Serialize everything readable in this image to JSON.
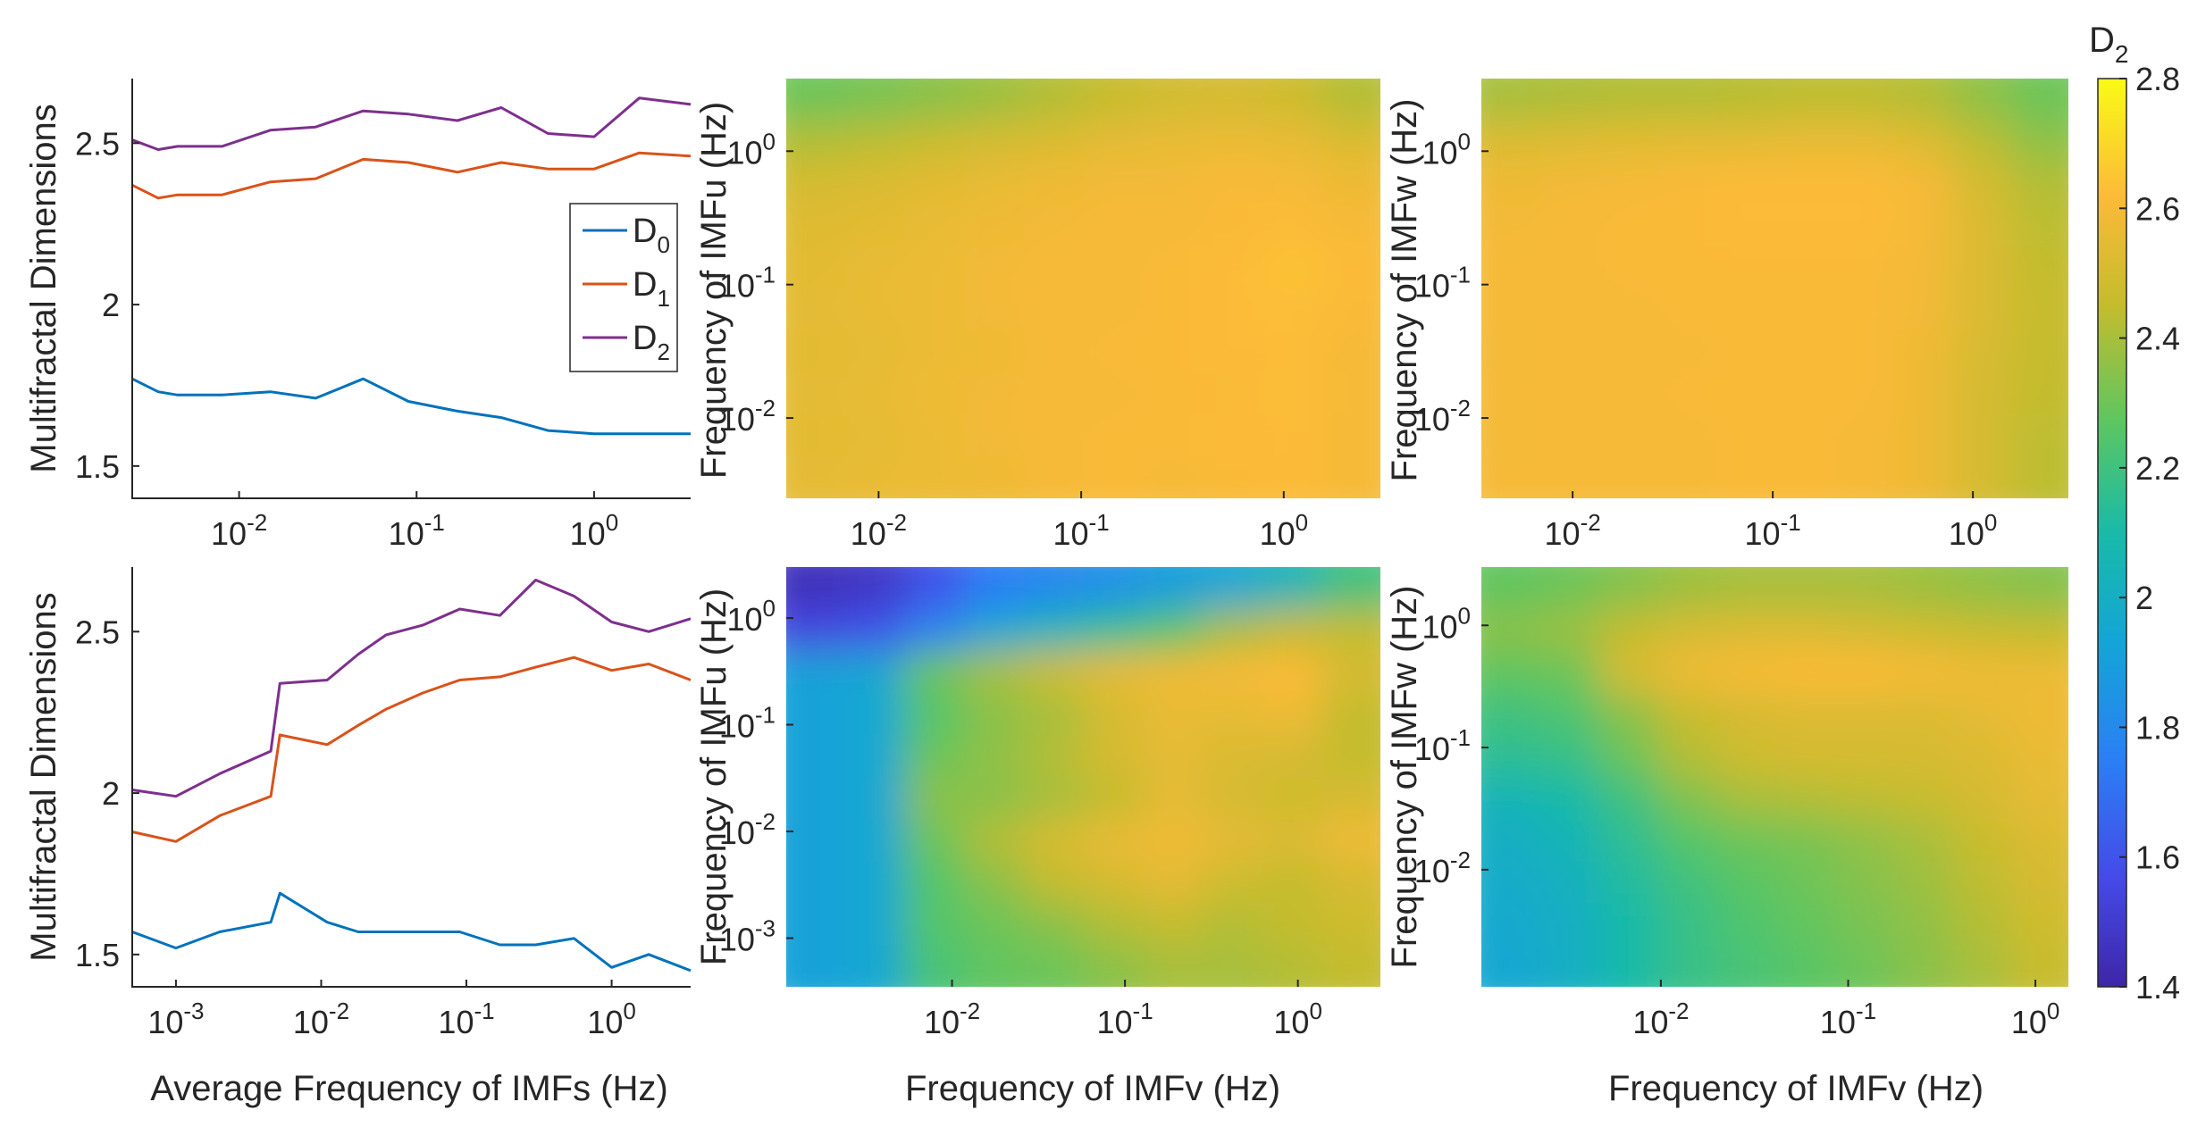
{
  "figure": {
    "colorbar": {
      "title": "D2",
      "title_base": "D",
      "title_sub": "2",
      "ticks": [
        "1.4",
        "1.6",
        "1.8",
        "2",
        "2.2",
        "2.4",
        "2.6",
        "2.8"
      ],
      "range": [
        1.4,
        2.8
      ]
    },
    "legend": [
      {
        "base": "D",
        "sub": "0",
        "color": "#0072BD"
      },
      {
        "base": "D",
        "sub": "1",
        "color": "#D95319"
      },
      {
        "base": "D",
        "sub": "2",
        "color": "#7E2F8E"
      }
    ]
  },
  "chart_data": [
    {
      "id": "p1",
      "type": "line",
      "xlabel": "",
      "ylabel": "Multifractal Dimensions",
      "xscale": "log",
      "xlim": [
        0.0025,
        3.5
      ],
      "ylim": [
        1.4,
        2.7
      ],
      "xticks": [
        0.01,
        0.1,
        1
      ],
      "xtick_labels": [
        {
          "b": "10",
          "e": "-2"
        },
        {
          "b": "10",
          "e": "-1"
        },
        {
          "b": "10",
          "e": "0"
        }
      ],
      "yticks": [
        1.5,
        2,
        2.5
      ],
      "ytick_labels": [
        "1.5",
        "2",
        "2.5"
      ],
      "x": [
        0.0025,
        0.0035,
        0.0045,
        0.008,
        0.015,
        0.027,
        0.05,
        0.09,
        0.17,
        0.3,
        0.55,
        1.0,
        1.8,
        3.5
      ],
      "series": [
        {
          "name": "D0",
          "values": [
            1.77,
            1.73,
            1.72,
            1.72,
            1.73,
            1.71,
            1.77,
            1.7,
            1.67,
            1.65,
            1.61,
            1.6,
            1.6,
            1.6
          ]
        },
        {
          "name": "D1",
          "values": [
            2.37,
            2.33,
            2.34,
            2.34,
            2.38,
            2.39,
            2.45,
            2.44,
            2.41,
            2.44,
            2.42,
            2.42,
            2.47,
            2.46
          ]
        },
        {
          "name": "D2",
          "values": [
            2.51,
            2.48,
            2.49,
            2.49,
            2.54,
            2.55,
            2.6,
            2.59,
            2.57,
            2.61,
            2.53,
            2.52,
            2.64,
            2.62
          ]
        }
      ]
    },
    {
      "id": "p2",
      "type": "heatmap",
      "xlabel": "",
      "ylabel": "Frequency of IMFu (Hz)",
      "xscale": "log",
      "yscale": "log",
      "xlim": [
        0.0035,
        3.0
      ],
      "ylim": [
        0.0025,
        3.5
      ],
      "xticks": [
        0.01,
        0.1,
        1
      ],
      "xtick_labels": [
        {
          "b": "10",
          "e": "-2"
        },
        {
          "b": "10",
          "e": "-1"
        },
        {
          "b": "10",
          "e": "0"
        }
      ],
      "yticks": [
        0.01,
        0.1,
        1
      ],
      "ytick_labels": [
        {
          "b": "10",
          "e": "-2"
        },
        {
          "b": "10",
          "e": "-1"
        },
        {
          "b": "10",
          "e": "0"
        }
      ],
      "grid_rows_top_to_bottom": [
        [
          2.3,
          2.32,
          2.35,
          2.38,
          2.42,
          2.46,
          2.49,
          2.5,
          2.48,
          2.42
        ],
        [
          2.42,
          2.44,
          2.47,
          2.5,
          2.52,
          2.55,
          2.56,
          2.57,
          2.56,
          2.52
        ],
        [
          2.5,
          2.52,
          2.54,
          2.56,
          2.58,
          2.59,
          2.59,
          2.61,
          2.6,
          2.58
        ],
        [
          2.53,
          2.54,
          2.56,
          2.58,
          2.59,
          2.6,
          2.6,
          2.61,
          2.62,
          2.6
        ],
        [
          2.54,
          2.56,
          2.57,
          2.59,
          2.6,
          2.6,
          2.61,
          2.62,
          2.64,
          2.62
        ],
        [
          2.55,
          2.56,
          2.57,
          2.59,
          2.6,
          2.6,
          2.61,
          2.62,
          2.63,
          2.61
        ],
        [
          2.54,
          2.55,
          2.57,
          2.58,
          2.6,
          2.61,
          2.61,
          2.62,
          2.62,
          2.6
        ],
        [
          2.55,
          2.56,
          2.58,
          2.59,
          2.6,
          2.6,
          2.61,
          2.61,
          2.63,
          2.6
        ],
        [
          2.54,
          2.55,
          2.57,
          2.59,
          2.6,
          2.61,
          2.61,
          2.62,
          2.62,
          2.6
        ],
        [
          2.55,
          2.56,
          2.57,
          2.58,
          2.6,
          2.61,
          2.6,
          2.61,
          2.62,
          2.6
        ]
      ]
    },
    {
      "id": "p3",
      "type": "heatmap",
      "xlabel": "",
      "ylabel": "Frequency of IMFw (Hz)",
      "xscale": "log",
      "yscale": "log",
      "xlim": [
        0.0035,
        3.0
      ],
      "ylim": [
        0.0025,
        3.5
      ],
      "xticks": [
        0.01,
        0.1,
        1
      ],
      "xtick_labels": [
        {
          "b": "10",
          "e": "-2"
        },
        {
          "b": "10",
          "e": "-1"
        },
        {
          "b": "10",
          "e": "0"
        }
      ],
      "yticks": [
        0.01,
        0.1,
        1
      ],
      "ytick_labels": [
        {
          "b": "10",
          "e": "-2"
        },
        {
          "b": "10",
          "e": "-1"
        },
        {
          "b": "10",
          "e": "0"
        }
      ],
      "grid_rows_top_to_bottom": [
        [
          2.4,
          2.41,
          2.42,
          2.42,
          2.43,
          2.44,
          2.44,
          2.42,
          2.36,
          2.3
        ],
        [
          2.52,
          2.53,
          2.54,
          2.55,
          2.55,
          2.56,
          2.56,
          2.53,
          2.44,
          2.36
        ],
        [
          2.58,
          2.59,
          2.6,
          2.61,
          2.62,
          2.62,
          2.62,
          2.6,
          2.5,
          2.42
        ],
        [
          2.59,
          2.6,
          2.61,
          2.61,
          2.62,
          2.62,
          2.62,
          2.6,
          2.52,
          2.44
        ],
        [
          2.6,
          2.6,
          2.61,
          2.61,
          2.61,
          2.61,
          2.61,
          2.59,
          2.52,
          2.45
        ],
        [
          2.6,
          2.6,
          2.6,
          2.61,
          2.61,
          2.61,
          2.61,
          2.59,
          2.52,
          2.46
        ],
        [
          2.59,
          2.6,
          2.6,
          2.6,
          2.61,
          2.61,
          2.61,
          2.58,
          2.51,
          2.45
        ],
        [
          2.6,
          2.6,
          2.6,
          2.61,
          2.61,
          2.61,
          2.61,
          2.58,
          2.5,
          2.45
        ],
        [
          2.59,
          2.6,
          2.6,
          2.6,
          2.61,
          2.61,
          2.6,
          2.58,
          2.5,
          2.44
        ],
        [
          2.6,
          2.6,
          2.6,
          2.6,
          2.61,
          2.61,
          2.6,
          2.58,
          2.5,
          2.44
        ]
      ]
    },
    {
      "id": "p4",
      "type": "line",
      "xlabel": "Average Frequency of IMFs (Hz)",
      "ylabel": "Multifractal Dimensions",
      "xscale": "log",
      "xlim": [
        0.0005,
        3.5
      ],
      "ylim": [
        1.4,
        2.7
      ],
      "xticks": [
        0.001,
        0.01,
        0.1,
        1
      ],
      "xtick_labels": [
        {
          "b": "10",
          "e": "-3"
        },
        {
          "b": "10",
          "e": "-2"
        },
        {
          "b": "10",
          "e": "-1"
        },
        {
          "b": "10",
          "e": "0"
        }
      ],
      "yticks": [
        1.5,
        2,
        2.5
      ],
      "ytick_labels": [
        "1.5",
        "2",
        "2.5"
      ],
      "x": [
        0.0005,
        0.001,
        0.002,
        0.0045,
        0.0052,
        0.011,
        0.018,
        0.028,
        0.05,
        0.09,
        0.17,
        0.3,
        0.55,
        1.0,
        1.8,
        3.5
      ],
      "series": [
        {
          "name": "D0",
          "values": [
            1.57,
            1.52,
            1.57,
            1.6,
            1.69,
            1.6,
            1.57,
            1.57,
            1.57,
            1.57,
            1.53,
            1.53,
            1.55,
            1.46,
            1.5,
            1.45
          ]
        },
        {
          "name": "D1",
          "values": [
            1.88,
            1.85,
            1.93,
            1.99,
            2.18,
            2.15,
            2.21,
            2.26,
            2.31,
            2.35,
            2.36,
            2.39,
            2.42,
            2.38,
            2.4,
            2.35
          ]
        },
        {
          "name": "D2",
          "values": [
            2.01,
            1.99,
            2.06,
            2.13,
            2.34,
            2.35,
            2.43,
            2.49,
            2.52,
            2.57,
            2.55,
            2.66,
            2.61,
            2.53,
            2.5,
            2.54
          ]
        }
      ]
    },
    {
      "id": "p5",
      "type": "heatmap",
      "xlabel": "Frequency of IMFv (Hz)",
      "ylabel": "Frequency of IMFu (Hz)",
      "xscale": "log",
      "yscale": "log",
      "xlim": [
        0.0011,
        3.0
      ],
      "ylim": [
        0.00035,
        3.0
      ],
      "xticks": [
        0.01,
        0.1,
        1
      ],
      "xtick_labels": [
        {
          "b": "10",
          "e": "-2"
        },
        {
          "b": "10",
          "e": "-1"
        },
        {
          "b": "10",
          "e": "0"
        }
      ],
      "yticks": [
        0.001,
        0.01,
        0.1,
        1
      ],
      "ytick_labels": [
        {
          "b": "10",
          "e": "-3"
        },
        {
          "b": "10",
          "e": "-2"
        },
        {
          "b": "10",
          "e": "-1"
        },
        {
          "b": "10",
          "e": "0"
        }
      ],
      "grid_rows_top_to_bottom": [
        [
          1.45,
          1.48,
          1.6,
          1.75,
          1.8,
          1.84,
          1.9,
          1.95,
          2.05,
          2.2
        ],
        [
          1.55,
          1.6,
          1.78,
          1.95,
          2.05,
          2.15,
          2.25,
          2.4,
          2.45,
          2.45
        ],
        [
          1.92,
          1.95,
          2.3,
          2.4,
          2.48,
          2.55,
          2.58,
          2.6,
          2.62,
          2.5
        ],
        [
          1.92,
          1.95,
          2.25,
          2.35,
          2.4,
          2.5,
          2.56,
          2.55,
          2.58,
          2.45
        ],
        [
          1.92,
          1.95,
          2.3,
          2.36,
          2.42,
          2.5,
          2.55,
          2.52,
          2.5,
          2.45
        ],
        [
          1.92,
          1.95,
          2.35,
          2.35,
          2.4,
          2.45,
          2.55,
          2.5,
          2.48,
          2.5
        ],
        [
          1.92,
          1.95,
          2.3,
          2.42,
          2.5,
          2.56,
          2.58,
          2.55,
          2.52,
          2.58
        ],
        [
          1.92,
          1.95,
          2.25,
          2.35,
          2.45,
          2.5,
          2.55,
          2.48,
          2.45,
          2.5
        ],
        [
          1.92,
          1.95,
          2.25,
          2.3,
          2.35,
          2.42,
          2.45,
          2.42,
          2.45,
          2.48
        ],
        [
          1.92,
          1.95,
          2.22,
          2.28,
          2.3,
          2.35,
          2.4,
          2.4,
          2.42,
          2.45
        ]
      ]
    },
    {
      "id": "p6",
      "type": "heatmap",
      "xlabel": "Frequency of IMFv (Hz)",
      "ylabel": "Frequency of IMFw (Hz)",
      "xscale": "log",
      "yscale": "log",
      "xlim": [
        0.0011,
        1.5
      ],
      "ylim": [
        0.0011,
        3.0
      ],
      "xticks": [
        0.01,
        0.1,
        1
      ],
      "xtick_labels": [
        {
          "b": "10",
          "e": "-2"
        },
        {
          "b": "10",
          "e": "-1"
        },
        {
          "b": "10",
          "e": "0"
        }
      ],
      "yticks": [
        0.01,
        0.1,
        1
      ],
      "ytick_labels": [
        {
          "b": "10",
          "e": "-2"
        },
        {
          "b": "10",
          "e": "-1"
        },
        {
          "b": "10",
          "e": "0"
        }
      ],
      "grid_rows_top_to_bottom": [
        [
          2.28,
          2.3,
          2.34,
          2.38,
          2.4,
          2.4,
          2.4,
          2.38,
          2.36,
          2.34
        ],
        [
          2.35,
          2.38,
          2.45,
          2.5,
          2.52,
          2.52,
          2.5,
          2.48,
          2.46,
          2.45
        ],
        [
          2.28,
          2.3,
          2.5,
          2.58,
          2.6,
          2.62,
          2.62,
          2.6,
          2.58,
          2.57
        ],
        [
          2.2,
          2.24,
          2.35,
          2.46,
          2.5,
          2.52,
          2.52,
          2.52,
          2.55,
          2.58
        ],
        [
          2.15,
          2.18,
          2.3,
          2.42,
          2.48,
          2.5,
          2.5,
          2.5,
          2.52,
          2.56
        ],
        [
          2.05,
          2.1,
          2.2,
          2.33,
          2.4,
          2.42,
          2.44,
          2.46,
          2.5,
          2.55
        ],
        [
          2.0,
          2.05,
          2.15,
          2.25,
          2.3,
          2.32,
          2.36,
          2.4,
          2.46,
          2.52
        ],
        [
          1.98,
          2.02,
          2.12,
          2.2,
          2.26,
          2.3,
          2.34,
          2.38,
          2.44,
          2.5
        ],
        [
          1.96,
          2.0,
          2.1,
          2.18,
          2.24,
          2.28,
          2.32,
          2.36,
          2.42,
          2.48
        ],
        [
          1.95,
          2.0,
          2.1,
          2.18,
          2.22,
          2.26,
          2.3,
          2.35,
          2.4,
          2.46
        ]
      ]
    }
  ]
}
